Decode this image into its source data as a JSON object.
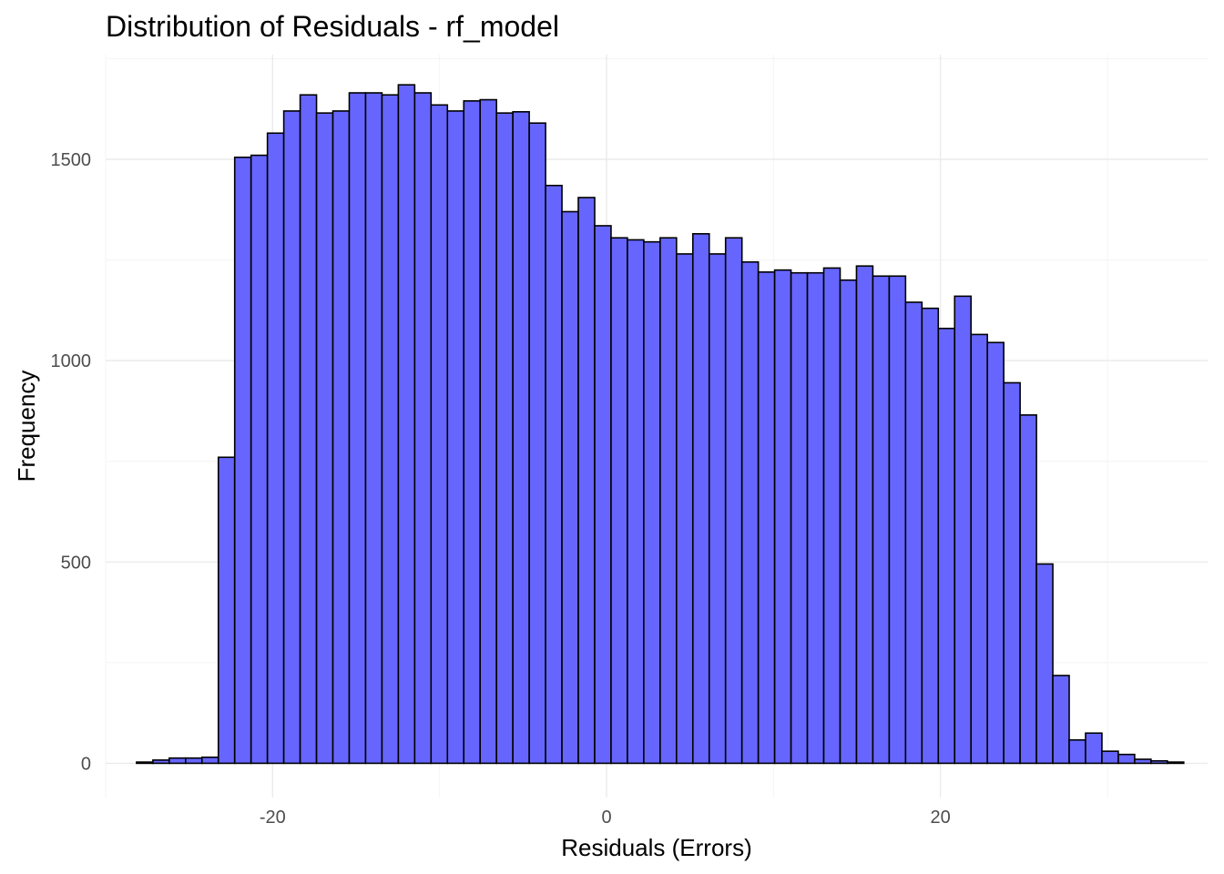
{
  "chart_data": {
    "type": "bar",
    "title": "Distribution of Residuals - rf_model",
    "xlabel": "Residuals (Errors)",
    "ylabel": "Frequency",
    "x_ticks": [
      -20,
      0,
      20
    ],
    "y_ticks": [
      0,
      500,
      1000,
      1500
    ],
    "xlim": [
      -30,
      36
    ],
    "ylim": [
      -85,
      1760
    ],
    "bin_start": -28.15,
    "bin_width": 0.98,
    "bar_fill": "#6666ff",
    "bar_outline": "#000000",
    "grid": true,
    "values": [
      3,
      8,
      13,
      13,
      15,
      760,
      1505,
      1510,
      1565,
      1620,
      1660,
      1615,
      1620,
      1665,
      1665,
      1660,
      1685,
      1665,
      1635,
      1620,
      1645,
      1648,
      1615,
      1618,
      1590,
      1435,
      1370,
      1405,
      1335,
      1305,
      1300,
      1295,
      1305,
      1265,
      1315,
      1265,
      1305,
      1245,
      1220,
      1225,
      1218,
      1218,
      1230,
      1200,
      1235,
      1210,
      1210,
      1145,
      1130,
      1080,
      1160,
      1065,
      1045,
      945,
      865,
      495,
      218,
      58,
      75,
      30,
      22,
      10,
      6,
      3
    ]
  }
}
